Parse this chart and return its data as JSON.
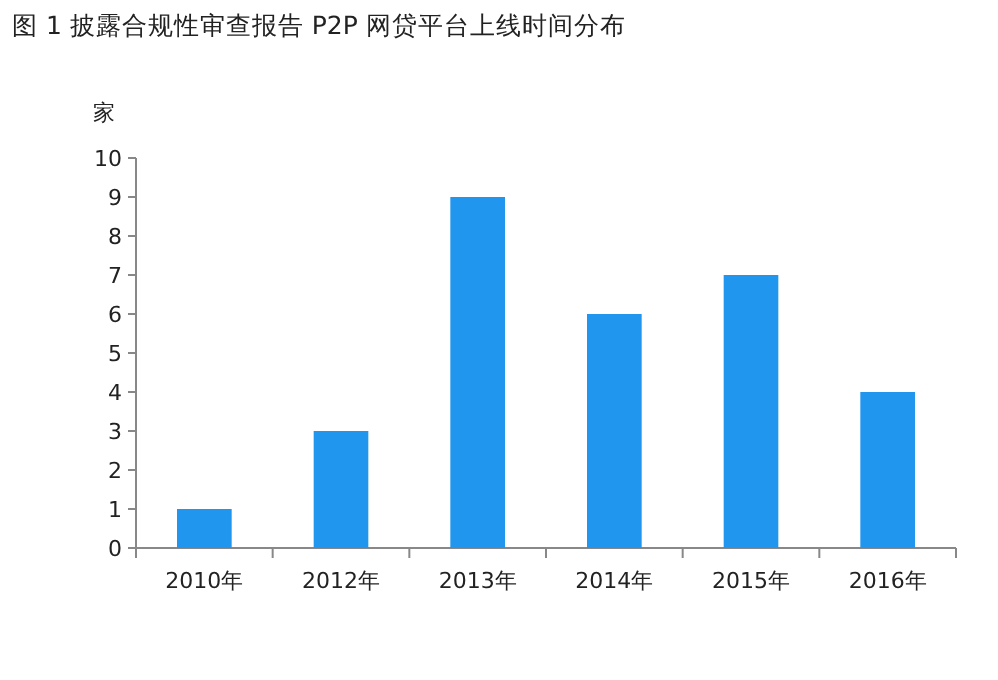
{
  "chart_data": {
    "type": "bar",
    "title": "图 1  披露合规性审查报告 P2P 网贷平台上线时间分布",
    "ylabel": "家",
    "categories": [
      "2010年",
      "2012年",
      "2013年",
      "2014年",
      "2015年",
      "2016年"
    ],
    "values": [
      1,
      3,
      9,
      6,
      7,
      4
    ],
    "color": "#2196ee",
    "ylim": [
      0,
      10
    ],
    "yticks": [
      0,
      1,
      2,
      3,
      4,
      5,
      6,
      7,
      8,
      9,
      10
    ],
    "grid": false
  }
}
